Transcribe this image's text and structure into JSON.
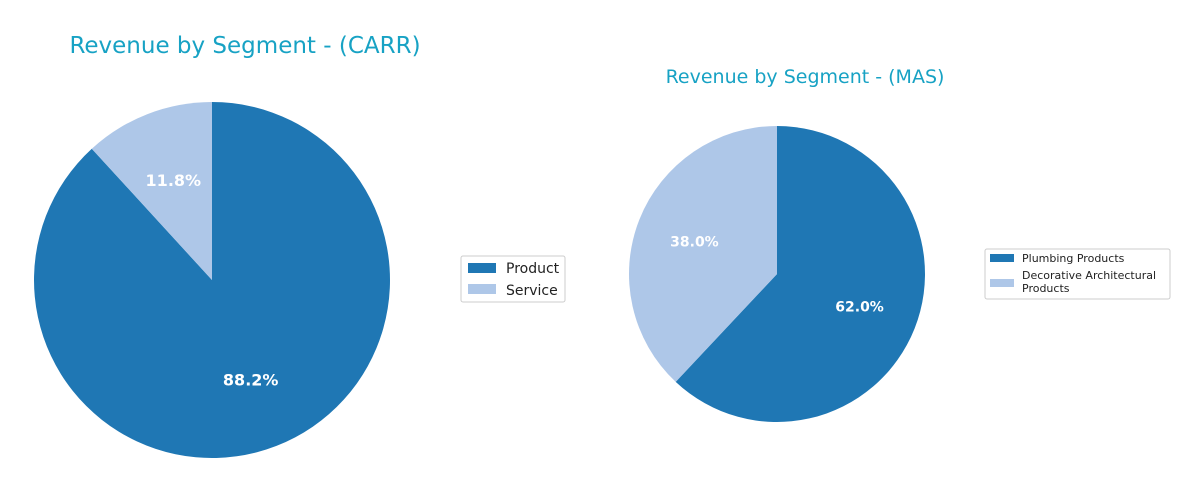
{
  "chart_data": [
    {
      "type": "pie",
      "title": "Revenue by Segment - (CARR)",
      "legend": "right",
      "slices": [
        {
          "label": "Product",
          "value": 88.2,
          "pct_label": "88.2%",
          "color": "#1f77b4"
        },
        {
          "label": "Service",
          "value": 11.8,
          "pct_label": "11.8%",
          "color": "#aec7e8"
        }
      ]
    },
    {
      "type": "pie",
      "title": "Revenue by Segment - (MAS)",
      "legend": "right",
      "slices": [
        {
          "label": "Plumbing Products",
          "value": 62.0,
          "pct_label": "62.0%",
          "color": "#1f77b4"
        },
        {
          "label": "Decorative Architectural Products",
          "label_lines": [
            "Decorative Architectural",
            "Products"
          ],
          "value": 38.0,
          "pct_label": "38.0%",
          "color": "#aec7e8"
        }
      ]
    }
  ]
}
